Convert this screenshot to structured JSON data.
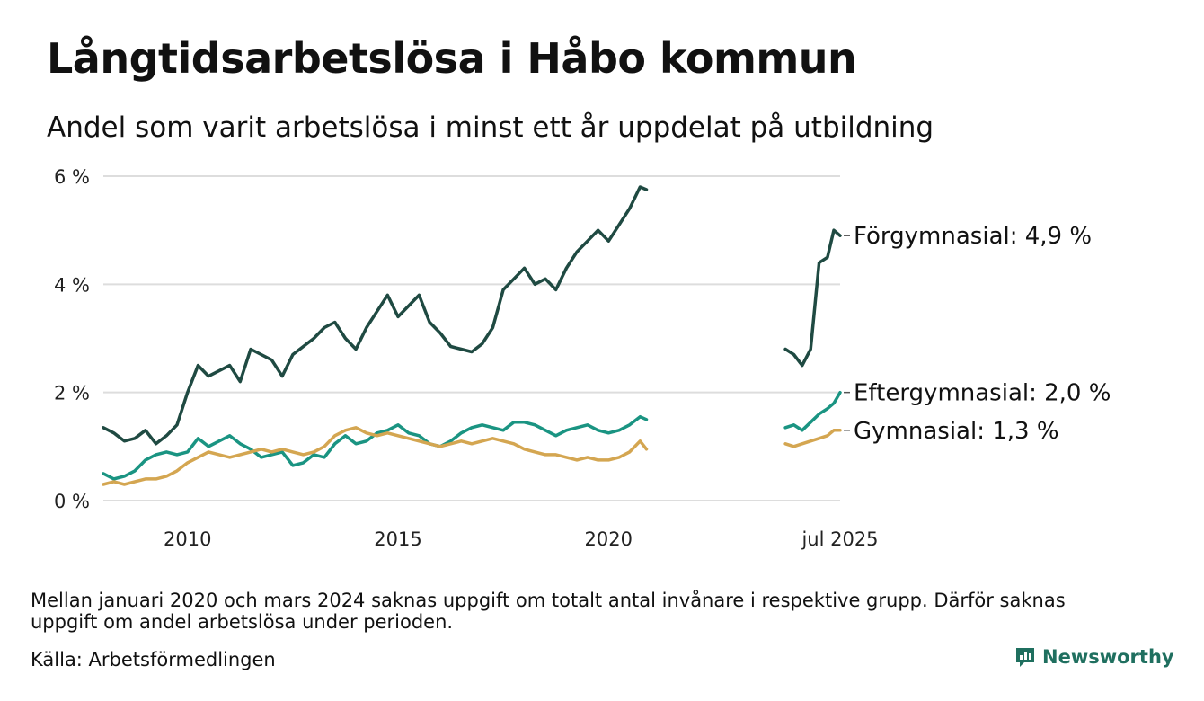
{
  "title": "Långtidsarbetslösa i Håbo kommun",
  "subtitle": "Andel som varit arbetslösa i minst ett år uppdelat på utbildning",
  "note": "Mellan januari 2020 och mars 2024 saknas uppgift om totalt antal invånare i respektive grupp. Därför saknas uppgift om andel arbetslösa under perioden.",
  "source": "Källa: Arbetsförmedlingen",
  "logo_text": "Newsworthy",
  "colors": {
    "forgymnasial": "#1f4a42",
    "eftergymnasial": "#1a9482",
    "gymnasial": "#d4a651",
    "grid": "#dddddd",
    "logo": "#1f6f5f"
  },
  "chart_data": {
    "type": "line",
    "ylim": [
      0,
      6
    ],
    "yticks": [
      0,
      2,
      4,
      6
    ],
    "ytick_labels": [
      "0 %",
      "2 %",
      "4 %",
      "6 %"
    ],
    "xticks": [
      2010,
      2015,
      2020,
      2025.5
    ],
    "xtick_labels": [
      "2010",
      "2015",
      "2020",
      "jul 2025"
    ],
    "xlim": [
      2008.0,
      2025.5
    ],
    "gap": [
      2021.0,
      2024.2
    ],
    "grid": true,
    "series": [
      {
        "key": "forgymnasial",
        "label": "Förgymnasial: 4,9 %",
        "x": [
          2008.0,
          2008.25,
          2008.5,
          2008.75,
          2009.0,
          2009.25,
          2009.5,
          2009.75,
          2010.0,
          2010.25,
          2010.5,
          2010.75,
          2011.0,
          2011.25,
          2011.5,
          2011.75,
          2012.0,
          2012.25,
          2012.5,
          2012.75,
          2013.0,
          2013.25,
          2013.5,
          2013.75,
          2014.0,
          2014.25,
          2014.5,
          2014.75,
          2015.0,
          2015.25,
          2015.5,
          2015.75,
          2016.0,
          2016.25,
          2016.5,
          2016.75,
          2017.0,
          2017.25,
          2017.5,
          2017.75,
          2018.0,
          2018.25,
          2018.5,
          2018.75,
          2019.0,
          2019.25,
          2019.5,
          2019.75,
          2020.0,
          2020.25,
          2020.5,
          2020.75,
          2020.9,
          2024.2,
          2024.4,
          2024.6,
          2024.8,
          2025.0,
          2025.2,
          2025.35,
          2025.5
        ],
        "y": [
          1.35,
          1.25,
          1.1,
          1.15,
          1.3,
          1.05,
          1.2,
          1.4,
          2.0,
          2.5,
          2.3,
          2.4,
          2.5,
          2.2,
          2.8,
          2.7,
          2.6,
          2.3,
          2.7,
          2.85,
          3.0,
          3.2,
          3.3,
          3.0,
          2.8,
          3.2,
          3.5,
          3.8,
          3.4,
          3.6,
          3.8,
          3.3,
          3.1,
          2.85,
          2.8,
          2.75,
          2.9,
          3.2,
          3.9,
          4.1,
          4.3,
          4.0,
          4.1,
          3.9,
          4.3,
          4.6,
          4.8,
          5.0,
          4.8,
          5.1,
          5.4,
          5.8,
          5.75,
          2.8,
          2.7,
          2.5,
          2.8,
          4.4,
          4.5,
          5.0,
          4.9
        ]
      },
      {
        "key": "eftergymnasial",
        "label": "Eftergymnasial: 2,0 %",
        "x": [
          2008.0,
          2008.25,
          2008.5,
          2008.75,
          2009.0,
          2009.25,
          2009.5,
          2009.75,
          2010.0,
          2010.25,
          2010.5,
          2010.75,
          2011.0,
          2011.25,
          2011.5,
          2011.75,
          2012.0,
          2012.25,
          2012.5,
          2012.75,
          2013.0,
          2013.25,
          2013.5,
          2013.75,
          2014.0,
          2014.25,
          2014.5,
          2014.75,
          2015.0,
          2015.25,
          2015.5,
          2015.75,
          2016.0,
          2016.25,
          2016.5,
          2016.75,
          2017.0,
          2017.25,
          2017.5,
          2017.75,
          2018.0,
          2018.25,
          2018.5,
          2018.75,
          2019.0,
          2019.25,
          2019.5,
          2019.75,
          2020.0,
          2020.25,
          2020.5,
          2020.75,
          2020.9,
          2024.2,
          2024.4,
          2024.6,
          2024.8,
          2025.0,
          2025.2,
          2025.35,
          2025.5
        ],
        "y": [
          0.5,
          0.4,
          0.45,
          0.55,
          0.75,
          0.85,
          0.9,
          0.85,
          0.9,
          1.15,
          1.0,
          1.1,
          1.2,
          1.05,
          0.95,
          0.8,
          0.85,
          0.9,
          0.65,
          0.7,
          0.85,
          0.8,
          1.05,
          1.2,
          1.05,
          1.1,
          1.25,
          1.3,
          1.4,
          1.25,
          1.2,
          1.05,
          1.0,
          1.1,
          1.25,
          1.35,
          1.4,
          1.35,
          1.3,
          1.45,
          1.45,
          1.4,
          1.3,
          1.2,
          1.3,
          1.35,
          1.4,
          1.3,
          1.25,
          1.3,
          1.4,
          1.55,
          1.5,
          1.35,
          1.4,
          1.3,
          1.45,
          1.6,
          1.7,
          1.8,
          2.0
        ]
      },
      {
        "key": "gymnasial",
        "label": "Gymnasial: 1,3 %",
        "x": [
          2008.0,
          2008.25,
          2008.5,
          2008.75,
          2009.0,
          2009.25,
          2009.5,
          2009.75,
          2010.0,
          2010.25,
          2010.5,
          2010.75,
          2011.0,
          2011.25,
          2011.5,
          2011.75,
          2012.0,
          2012.25,
          2012.5,
          2012.75,
          2013.0,
          2013.25,
          2013.5,
          2013.75,
          2014.0,
          2014.25,
          2014.5,
          2014.75,
          2015.0,
          2015.25,
          2015.5,
          2015.75,
          2016.0,
          2016.25,
          2016.5,
          2016.75,
          2017.0,
          2017.25,
          2017.5,
          2017.75,
          2018.0,
          2018.25,
          2018.5,
          2018.75,
          2019.0,
          2019.25,
          2019.5,
          2019.75,
          2020.0,
          2020.25,
          2020.5,
          2020.75,
          2020.9,
          2024.2,
          2024.4,
          2024.6,
          2024.8,
          2025.0,
          2025.2,
          2025.35,
          2025.5
        ],
        "y": [
          0.3,
          0.35,
          0.3,
          0.35,
          0.4,
          0.4,
          0.45,
          0.55,
          0.7,
          0.8,
          0.9,
          0.85,
          0.8,
          0.85,
          0.9,
          0.95,
          0.9,
          0.95,
          0.9,
          0.85,
          0.9,
          1.0,
          1.2,
          1.3,
          1.35,
          1.25,
          1.2,
          1.25,
          1.2,
          1.15,
          1.1,
          1.05,
          1.0,
          1.05,
          1.1,
          1.05,
          1.1,
          1.15,
          1.1,
          1.05,
          0.95,
          0.9,
          0.85,
          0.85,
          0.8,
          0.75,
          0.8,
          0.75,
          0.75,
          0.8,
          0.9,
          1.1,
          0.95,
          1.05,
          1.0,
          1.05,
          1.1,
          1.15,
          1.2,
          1.3,
          1.3
        ]
      }
    ]
  }
}
